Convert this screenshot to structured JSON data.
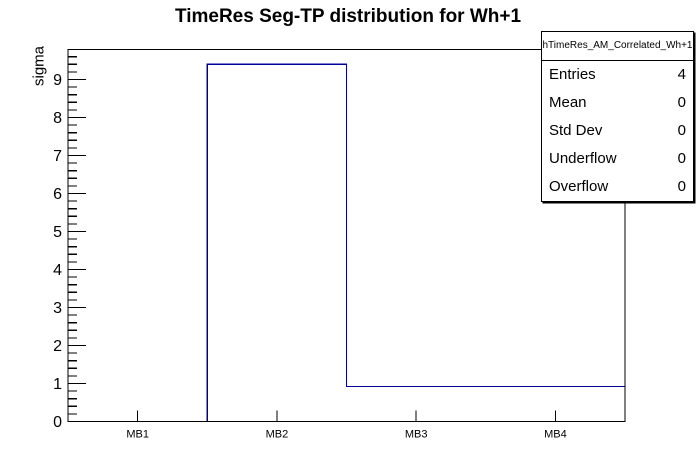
{
  "title": "TimeRes Seg-TP distribution for Wh+1",
  "y_axis_label": "sigma",
  "stats": {
    "header": "hTimeRes_AM_Correlated_Wh+1",
    "rows": [
      {
        "label": "Entries",
        "value": "4"
      },
      {
        "label": "Mean",
        "value": "0"
      },
      {
        "label": "Std Dev",
        "value": "0"
      },
      {
        "label": "Underflow",
        "value": "0"
      },
      {
        "label": "Overflow",
        "value": "0"
      }
    ]
  },
  "chart_data": {
    "type": "bar",
    "style": "root-step-histogram",
    "title": "TimeRes Seg-TP distribution for Wh+1",
    "categories": [
      "MB1",
      "MB2",
      "MB3",
      "MB4"
    ],
    "values": [
      0,
      9.4,
      0.92,
      0.92
    ],
    "xlabel": "",
    "ylabel": "sigma",
    "ylim": [
      0,
      9.79
    ],
    "yticks_major": [
      0,
      1,
      2,
      3,
      4,
      5,
      6,
      7,
      8,
      9
    ],
    "minor_tick_step": 0.2,
    "grid": false,
    "legend_position": "none",
    "line_color": "#000099",
    "frame_color": "#000000",
    "background_color": "#ffffff"
  }
}
